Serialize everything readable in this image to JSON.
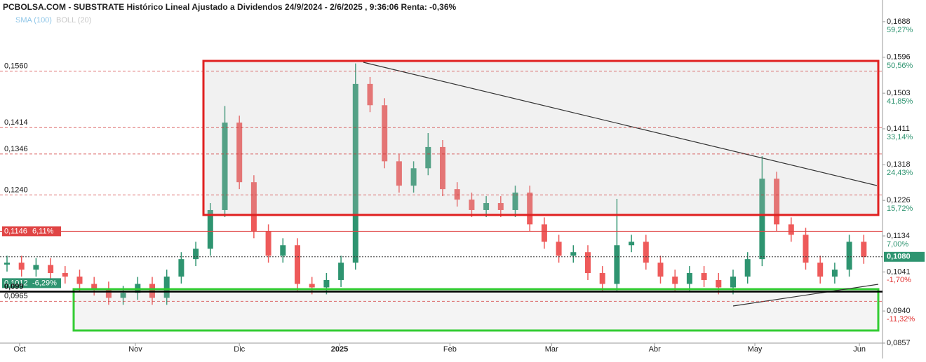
{
  "chart_data": {
    "type": "candlestick",
    "title": "PCBOLSA.COM - SUBSTRATE Histórico Lineal Ajustado a Dividendos 24/9/2024 - 2/6/2025 , 9:36:06 Renta: -0,36%",
    "legend": [
      "SMA (100)",
      "BOLL (20)"
    ],
    "ylim": [
      0.0857,
      0.1744
    ],
    "yticks": [
      {
        "value": 0.0857,
        "label": "0,0857"
      },
      {
        "value": 0.094,
        "label": "0,0940"
      },
      {
        "value": 0.1041,
        "label": "0,1041"
      },
      {
        "value": 0.1134,
        "label": "0,1134"
      },
      {
        "value": 0.1226,
        "label": "0,1226"
      },
      {
        "value": 0.1318,
        "label": "0,1318"
      },
      {
        "value": 0.1411,
        "label": "0,1411"
      },
      {
        "value": 0.1503,
        "label": "0,1503"
      },
      {
        "value": 0.1596,
        "label": "0,1596"
      },
      {
        "value": 0.1688,
        "label": "0,1688"
      }
    ],
    "y2lim": [
      -19.14,
      64.56
    ],
    "y2ticks": [
      {
        "value": -11.32,
        "label": "-11,32%"
      },
      {
        "value": -1.7,
        "label": "-1,70%"
      },
      {
        "value": 7,
        "label": "7,00%"
      },
      {
        "value": 15.72,
        "label": "15,72%"
      },
      {
        "value": 24.43,
        "label": "24,43%"
      },
      {
        "value": 33.14,
        "label": "33,14%"
      },
      {
        "value": 41.85,
        "label": "41,85%"
      },
      {
        "value": 50.56,
        "label": "50,56%"
      },
      {
        "value": 59.27,
        "label": "59,27%"
      }
    ],
    "xticks": [
      {
        "value": 0.87,
        "label": "Oct"
      },
      {
        "value": 8.84,
        "label": "Nov"
      },
      {
        "value": 16,
        "label": "Dic"
      },
      {
        "value": 22.9,
        "label": "2025"
      },
      {
        "value": 30.5,
        "label": "Feb"
      },
      {
        "value": 37.5,
        "label": "Mar"
      },
      {
        "value": 44.6,
        "label": "Abr"
      },
      {
        "value": 51.5,
        "label": "May"
      },
      {
        "value": 58.7,
        "label": "Jun"
      }
    ],
    "up_color": "#2e9470",
    "down_color": "#ee5a5a",
    "open": [
      0.106,
      0.1065,
      0.1047,
      0.1059,
      0.1038,
      0.1029,
      0.101,
      0.0998,
      0.0974,
      0.0987,
      0.101,
      0.0974,
      0.1029,
      0.1074,
      0.1101,
      0.1201,
      0.1427,
      0.1273,
      0.1146,
      0.1083,
      0.111,
      0.101,
      0.1001,
      0.102,
      0.1065,
      0.1527,
      0.1472,
      0.1327,
      0.1264,
      0.1309,
      0.1364,
      0.1255,
      0.1228,
      0.1201,
      0.1219,
      0.1201,
      0.1246,
      0.1164,
      0.1119,
      0.1083,
      0.1092,
      0.1038,
      0.101,
      0.111,
      0.1119,
      0.1065,
      0.1029,
      0.101,
      0.1038,
      0.102,
      0.1001,
      0.1029,
      0.1074,
      0.1282,
      0.1164,
      0.1137,
      0.1065,
      0.1029,
      0.1047,
      0.1119
    ],
    "high": [
      0.1083,
      0.1083,
      0.1077,
      0.1077,
      0.1056,
      0.1047,
      0.1028,
      0.1016,
      0.1005,
      0.1028,
      0.1028,
      0.1047,
      0.1092,
      0.1119,
      0.1219,
      0.147,
      0.1445,
      0.1291,
      0.1164,
      0.1128,
      0.1128,
      0.1028,
      0.1038,
      0.1083,
      0.158,
      0.1545,
      0.149,
      0.1345,
      0.1327,
      0.14,
      0.1382,
      0.1273,
      0.1246,
      0.1237,
      0.1237,
      0.1264,
      0.1264,
      0.1182,
      0.1137,
      0.111,
      0.111,
      0.1056,
      0.123,
      0.1137,
      0.1137,
      0.1083,
      0.1047,
      0.1056,
      0.1056,
      0.1038,
      0.1047,
      0.1092,
      0.134,
      0.13,
      0.1182,
      0.1155,
      0.1083,
      0.1065,
      0.1137,
      0.1137
    ],
    "low": [
      0.1042,
      0.1029,
      0.1029,
      0.102,
      0.1011,
      0.0992,
      0.098,
      0.0956,
      0.0956,
      0.0969,
      0.0956,
      0.0956,
      0.1011,
      0.1056,
      0.1083,
      0.1183,
      0.1255,
      0.1128,
      0.1065,
      0.1065,
      0.0992,
      0.0983,
      0.0983,
      0.1002,
      0.1047,
      0.1454,
      0.1309,
      0.1246,
      0.1246,
      0.1291,
      0.1237,
      0.121,
      0.1183,
      0.1183,
      0.1183,
      0.1183,
      0.1146,
      0.1101,
      0.1065,
      0.1065,
      0.102,
      0.0992,
      0.0992,
      0.1092,
      0.1047,
      0.1011,
      0.0992,
      0.0992,
      0.1002,
      0.0983,
      0.0983,
      0.1011,
      0.1056,
      0.1146,
      0.1119,
      0.1047,
      0.1011,
      0.1011,
      0.1029,
      0.1062
    ],
    "close": [
      0.1065,
      0.1047,
      0.1059,
      0.1038,
      0.1029,
      0.101,
      0.0998,
      0.0974,
      0.0987,
      0.101,
      0.0974,
      0.1029,
      0.1074,
      0.1101,
      0.1201,
      0.1427,
      0.1273,
      0.1146,
      0.1083,
      0.111,
      0.101,
      0.1001,
      0.102,
      0.1065,
      0.1527,
      0.1472,
      0.1327,
      0.1264,
      0.1309,
      0.1364,
      0.1255,
      0.1228,
      0.1201,
      0.1219,
      0.1201,
      0.1246,
      0.1164,
      0.1119,
      0.1083,
      0.1092,
      0.1038,
      0.101,
      0.111,
      0.1119,
      0.1065,
      0.1029,
      0.101,
      0.1038,
      0.102,
      0.1001,
      0.1029,
      0.1074,
      0.1282,
      0.1164,
      0.1137,
      0.1065,
      0.1029,
      0.1047,
      0.1119,
      0.108
    ],
    "levels": [
      {
        "value": 0.156,
        "label": "0,1560",
        "color": "#d03030",
        "style": "dashed"
      },
      {
        "value": 0.1414,
        "label": "0,1414",
        "color": "#d03030",
        "style": "dashed"
      },
      {
        "value": 0.1346,
        "label": "0,1346",
        "color": "#d03030",
        "style": "dashed"
      },
      {
        "value": 0.124,
        "label": "0,1240",
        "color": "#d03030",
        "style": "dashed"
      },
      {
        "value": 0.1146,
        "label": "0,1146",
        "change": "6,11%",
        "color": "#e04545",
        "style": "solid",
        "boxed": true
      },
      {
        "value": 0.1012,
        "label": "0,1012",
        "change": "-6,29%",
        "color": "#2e9470",
        "style": "none",
        "boxed": true
      },
      {
        "value": 0.099,
        "label": "0,099",
        "color": "#000000",
        "style": "bold"
      },
      {
        "value": 0.0965,
        "label": "0,0965",
        "color": "#d03030",
        "style": "dashed"
      }
    ],
    "last": {
      "value": 0.108,
      "label": "0,1080",
      "color": "#2e9470"
    }
  }
}
